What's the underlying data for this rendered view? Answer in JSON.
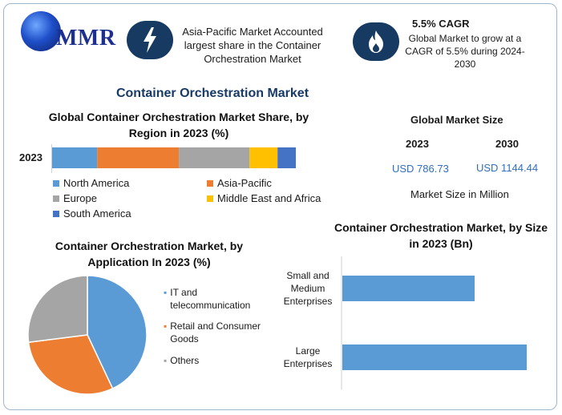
{
  "brand": {
    "logo_text": "MMR"
  },
  "header": {
    "card1_text": "Asia-Pacific Market Accounted largest share in the Container Orchestration Market",
    "card2_title": "5.5% CAGR",
    "card2_text": "Global Market to grow at a CAGR of 5.5% during 2024-2030",
    "icon1": "lightning-icon",
    "icon2": "flame-icon"
  },
  "main_title": "Container Orchestration Market",
  "market_size": {
    "title": "Global Market Size",
    "year1": "2023",
    "year2": "2030",
    "value1": "USD 786.73",
    "value2": "USD 1144.44",
    "unit_note": "Market Size in Million"
  },
  "chart_data": [
    {
      "type": "bar",
      "orientation": "horizontal-stacked",
      "title": "Global Container Orchestration Market  Share, by Region in 2023 (%)",
      "categories": [
        "2023"
      ],
      "series": [
        {
          "name": "North America",
          "values": [
            18.5
          ],
          "color": "#5b9bd5"
        },
        {
          "name": "Asia-Pacific",
          "values": [
            33.5
          ],
          "color": "#ed7d31"
        },
        {
          "name": "Europe",
          "values": [
            29.0
          ],
          "color": "#a5a5a5"
        },
        {
          "name": "Middle East and Africa",
          "values": [
            11.5
          ],
          "color": "#ffc000"
        },
        {
          "name": "South America",
          "values": [
            7.5
          ],
          "color": "#4472c4"
        }
      ],
      "legend": "bottom"
    },
    {
      "type": "pie",
      "title": "Container Orchestration Market, by Application In 2023 (%)",
      "labels": [
        "IT and telecommunication",
        "Retail and Consumer Goods",
        "Others"
      ],
      "values": [
        43,
        30,
        27
      ],
      "colors": [
        "#5b9bd5",
        "#ed7d31",
        "#a5a5a5"
      ],
      "legend": "right"
    },
    {
      "type": "bar",
      "orientation": "horizontal",
      "title": "Container Orchestration Market, by Size in 2023 (Bn)",
      "categories": [
        "Small and Medium Enterprises",
        "Large Enterprises"
      ],
      "values": [
        0.33,
        0.46
      ],
      "color": "#5b9bd5",
      "xlim": [
        0,
        0.5
      ]
    }
  ]
}
